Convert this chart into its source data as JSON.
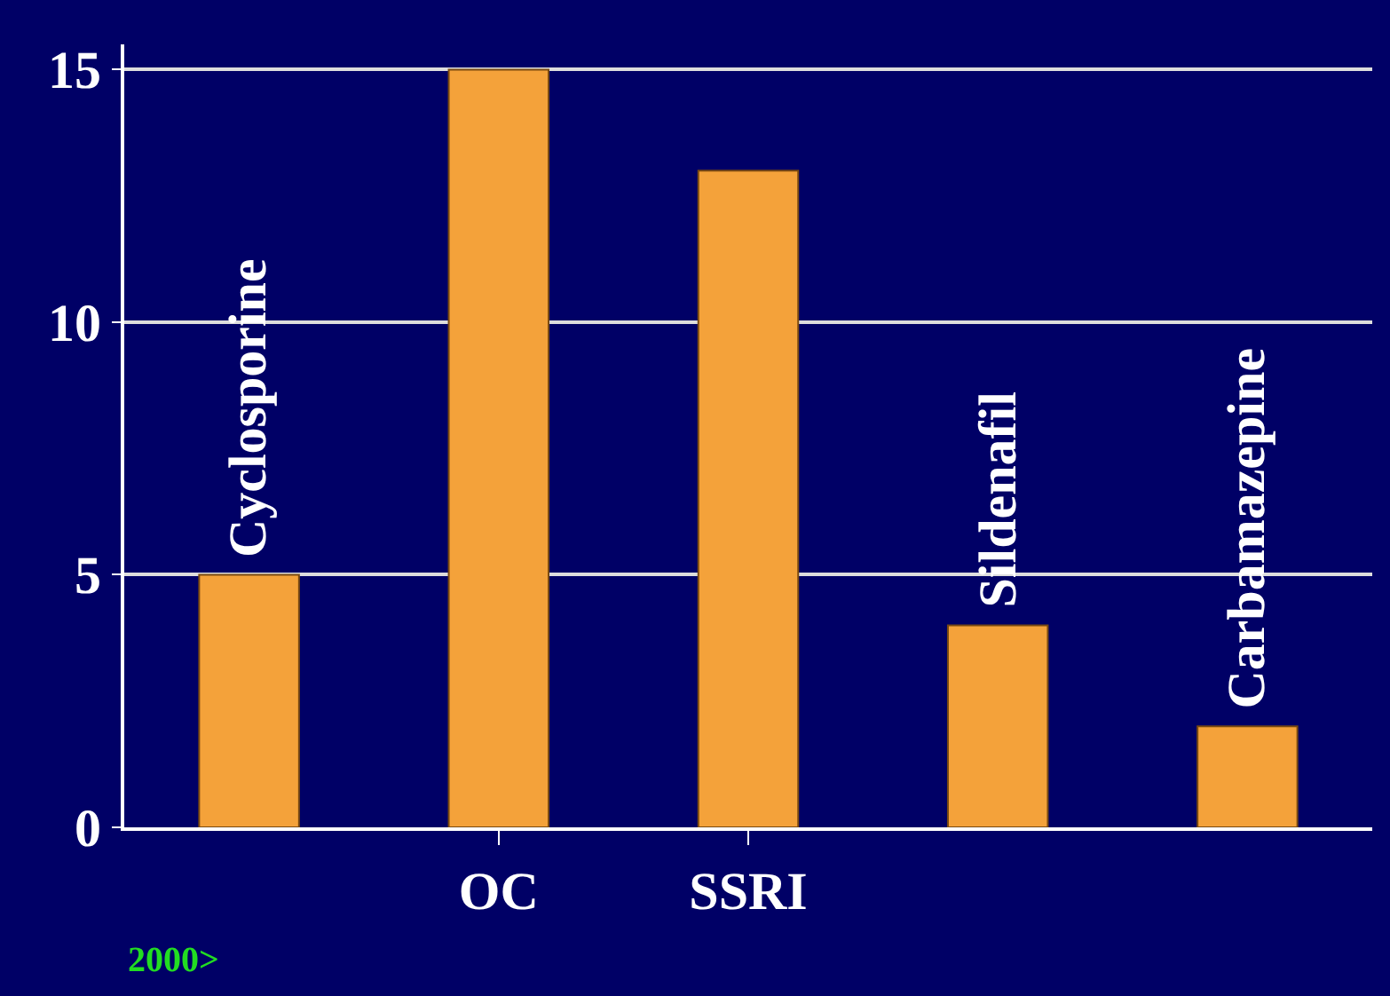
{
  "chart_data": {
    "type": "bar",
    "categories": [
      null,
      "OC",
      "SSRI",
      null,
      null
    ],
    "values": [
      5,
      15,
      13,
      4,
      2
    ],
    "color": "#f4a23a",
    "value_labels": [
      "Cyclosporine",
      null,
      null,
      "Sildenafil",
      "Carbamazepine"
    ],
    "ylim": [
      0,
      15.5
    ],
    "yticks": [
      0,
      5,
      10,
      15
    ],
    "grid": "y",
    "annotations": [
      "2000>"
    ]
  }
}
